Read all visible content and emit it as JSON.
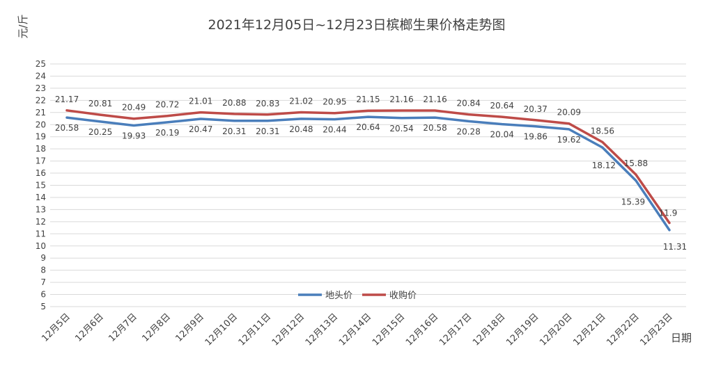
{
  "chart_data": {
    "type": "line",
    "title": "2021年12月05日~12月23日槟榔生果价格走势图",
    "ylabel": "元/斤",
    "xlabel": "日期",
    "ylim": [
      5,
      25
    ],
    "yticks": [
      5,
      6,
      7,
      8,
      9,
      10,
      11,
      12,
      13,
      14,
      15,
      16,
      17,
      18,
      19,
      20,
      21,
      22,
      23,
      24,
      25
    ],
    "grid": true,
    "legend_position": "bottom-center",
    "categories": [
      "12月5日",
      "12月6日",
      "12月7日",
      "12月8日",
      "12月9日",
      "12月10日",
      "12月11日",
      "12月12日",
      "12月13日",
      "12月14日",
      "12月15日",
      "12月16日",
      "12月17日",
      "12月18日",
      "12月19日",
      "12月20日",
      "12月21日",
      "12月22日",
      "12月23日"
    ],
    "series": [
      {
        "name": "地头价",
        "color": "#4a7ebb",
        "values": [
          20.58,
          20.25,
          19.93,
          20.19,
          20.47,
          20.31,
          20.31,
          20.48,
          20.44,
          20.64,
          20.54,
          20.58,
          20.28,
          20.04,
          19.86,
          19.62,
          18.12,
          15.39,
          11.31
        ]
      },
      {
        "name": "收购价",
        "color": "#be4b48",
        "values": [
          21.17,
          20.81,
          20.49,
          20.72,
          21.01,
          20.88,
          20.83,
          21.02,
          20.95,
          21.15,
          21.16,
          21.16,
          20.84,
          20.64,
          20.37,
          20.09,
          18.56,
          15.88,
          11.9
        ]
      }
    ]
  }
}
